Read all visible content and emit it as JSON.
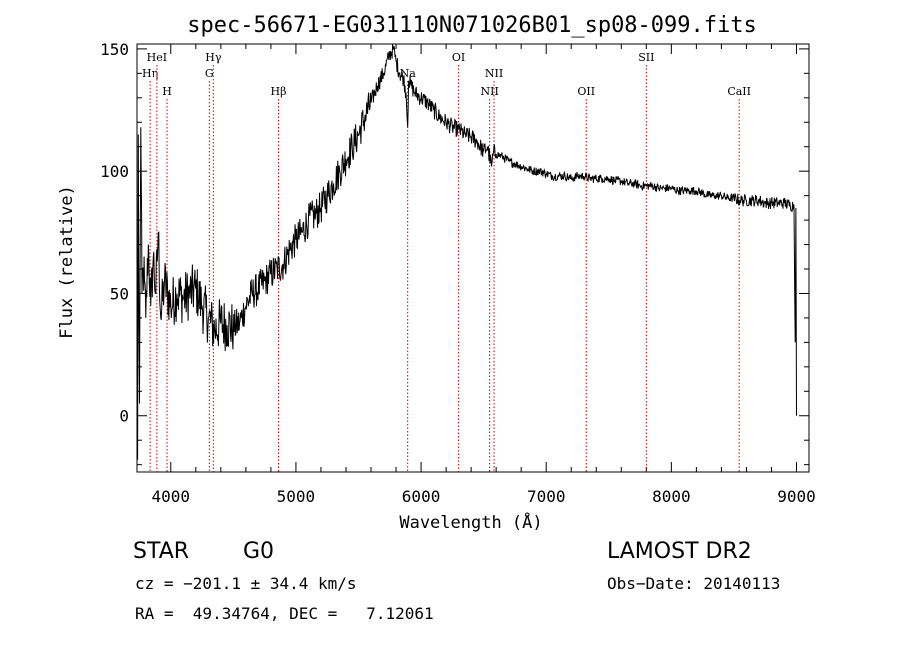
{
  "chart_data": {
    "type": "line",
    "title": "spec-56671-EG031110N071026B01_sp08-099.fits",
    "xlabel": "Wavelength (Å)",
    "ylabel": "Flux (relative)",
    "xlim": [
      3730,
      9100
    ],
    "ylim": [
      -23,
      152
    ],
    "xticks": [
      4000,
      5000,
      6000,
      7000,
      8000,
      9000
    ],
    "yticks": [
      0,
      50,
      100,
      150
    ],
    "grid": false,
    "series": [
      {
        "x": [
          3735,
          3740,
          3745,
          3750,
          3760,
          3770,
          3780,
          3790,
          3800,
          3820,
          3840,
          3860,
          3880,
          3900,
          3920,
          3950,
          4000,
          4050,
          4100,
          4150,
          4200,
          4250,
          4300,
          4350,
          4400,
          4450,
          4500,
          4550,
          4600,
          4650,
          4700,
          4750,
          4800,
          4850,
          4900,
          4950,
          5000,
          5050,
          5100,
          5150,
          5200,
          5250,
          5300,
          5350,
          5400,
          5450,
          5500,
          5550,
          5600,
          5650,
          5700,
          5750,
          5780,
          5800,
          5830,
          5860,
          5880,
          5893,
          5900,
          5920,
          5950,
          6000,
          6050,
          6100,
          6150,
          6200,
          6250,
          6300,
          6350,
          6400,
          6450,
          6500,
          6530,
          6563,
          6580,
          6600,
          6650,
          6700,
          6750,
          6800,
          6850,
          6900,
          6950,
          7000,
          7050,
          7100,
          7150,
          7200,
          7250,
          7300,
          7350,
          7400,
          7450,
          7500,
          7550,
          7600,
          7650,
          7700,
          7750,
          7800,
          7850,
          7900,
          7950,
          8000,
          8050,
          8100,
          8150,
          8200,
          8250,
          8300,
          8350,
          8400,
          8450,
          8500,
          8550,
          8600,
          8650,
          8700,
          8750,
          8800,
          8850,
          8900,
          8950,
          8980,
          8990,
          8995,
          9000
        ],
        "y": [
          -18,
          115,
          40,
          5,
          118,
          50,
          60,
          55,
          40,
          70,
          45,
          65,
          50,
          75,
          40,
          55,
          45,
          50,
          48,
          50,
          52,
          45,
          40,
          35,
          38,
          37,
          36,
          38,
          45,
          50,
          52,
          55,
          58,
          60,
          62,
          68,
          72,
          75,
          80,
          82,
          85,
          90,
          95,
          100,
          105,
          110,
          115,
          122,
          128,
          135,
          140,
          148,
          150,
          145,
          140,
          138,
          132,
          118,
          137,
          135,
          132,
          130,
          128,
          125,
          122,
          120,
          118,
          117,
          115,
          114,
          112,
          108,
          110,
          102,
          108,
          107,
          106,
          104,
          103,
          102,
          101,
          100,
          100,
          99,
          98,
          98,
          98,
          97,
          98,
          98,
          97,
          97,
          97,
          97,
          96,
          96,
          95,
          95,
          94,
          94,
          94,
          93,
          93,
          93,
          92,
          92,
          92,
          92,
          91,
          90,
          90,
          90,
          89,
          89,
          88,
          88,
          88,
          88,
          87,
          87,
          87,
          87,
          86,
          86,
          30,
          85,
          0
        ]
      }
    ],
    "lines": [
      {
        "label": "Hη",
        "wave": 3835,
        "row": 2
      },
      {
        "label": "HeI",
        "wave": 3889,
        "row": 1
      },
      {
        "label": "H",
        "wave": 3970,
        "row": 3
      },
      {
        "label": "Hγ",
        "wave": 4340,
        "row": 1
      },
      {
        "label": "G",
        "wave": 4308,
        "row": 2
      },
      {
        "label": "Hβ",
        "wave": 4861,
        "row": 3
      },
      {
        "label": "Na",
        "wave": 5893,
        "row": 2
      },
      {
        "label": "OI",
        "wave": 6300,
        "row": 1
      },
      {
        "label": "NII",
        "wave": 6583,
        "row": 2
      },
      {
        "label": "NII",
        "wave": 6548,
        "row": 3
      },
      {
        "label": "OII",
        "wave": 7320,
        "row": 3
      },
      {
        "label": "SII",
        "wave": 7800,
        "row": 1
      },
      {
        "label": "CaII",
        "wave": 8542,
        "row": 3
      }
    ],
    "colors": {
      "spectrum": "#000000",
      "lines": "#cc0000"
    }
  },
  "info": {
    "object_class": "STAR",
    "subclass": "G0",
    "survey": "LAMOST DR2",
    "cz": "cz = −201.1 ± 34.4 km/s",
    "obs_date": "Obs−Date: 20140113",
    "coords": "RA =  49.34764, DEC =   7.12061"
  }
}
